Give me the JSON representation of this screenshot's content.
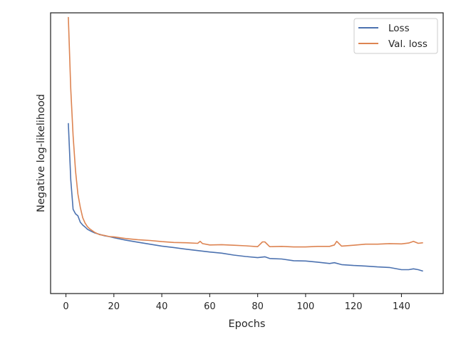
{
  "chart_data": {
    "type": "line",
    "xlabel": "Epochs",
    "ylabel": "Negative log-likelihood",
    "xlim": [
      -6.4,
      157.4
    ],
    "ylim": [
      0.0,
      1.0
    ],
    "x_ticks": [
      0,
      20,
      40,
      60,
      80,
      100,
      120,
      140
    ],
    "y_tick_labels": "none",
    "grid": false,
    "legend": {
      "placement": "top-right"
    },
    "series": [
      {
        "name": "Loss",
        "color": "#4c72b0",
        "x": [
          1,
          2,
          3,
          4,
          5,
          6,
          7,
          8,
          9,
          10,
          12,
          14,
          16,
          18,
          20,
          25,
          30,
          35,
          40,
          45,
          50,
          55,
          60,
          65,
          70,
          75,
          80,
          83,
          85,
          90,
          95,
          100,
          105,
          110,
          112,
          115,
          120,
          125,
          130,
          135,
          140,
          143,
          145,
          147,
          149
        ],
        "y": [
          0.607,
          0.406,
          0.3,
          0.284,
          0.277,
          0.254,
          0.244,
          0.237,
          0.229,
          0.224,
          0.216,
          0.211,
          0.206,
          0.203,
          0.199,
          0.19,
          0.183,
          0.176,
          0.169,
          0.164,
          0.158,
          0.153,
          0.148,
          0.144,
          0.137,
          0.132,
          0.128,
          0.131,
          0.125,
          0.123,
          0.117,
          0.116,
          0.112,
          0.107,
          0.11,
          0.103,
          0.1,
          0.098,
          0.095,
          0.093,
          0.085,
          0.085,
          0.088,
          0.085,
          0.08
        ]
      },
      {
        "name": "Val. loss",
        "color": "#dd8452",
        "x": [
          1,
          2,
          3,
          4,
          5,
          6,
          7,
          8,
          9,
          10,
          12,
          14,
          16,
          18,
          20,
          25,
          30,
          35,
          40,
          45,
          50,
          55,
          56,
          57,
          60,
          65,
          70,
          75,
          80,
          82,
          83,
          85,
          90,
          95,
          100,
          105,
          110,
          112,
          113,
          115,
          120,
          125,
          130,
          135,
          140,
          143,
          145,
          147,
          149
        ],
        "y": [
          0.985,
          0.729,
          0.562,
          0.437,
          0.355,
          0.307,
          0.27,
          0.251,
          0.238,
          0.23,
          0.218,
          0.21,
          0.207,
          0.203,
          0.202,
          0.196,
          0.192,
          0.189,
          0.185,
          0.182,
          0.181,
          0.179,
          0.186,
          0.178,
          0.173,
          0.174,
          0.172,
          0.17,
          0.167,
          0.184,
          0.184,
          0.167,
          0.168,
          0.166,
          0.166,
          0.168,
          0.168,
          0.173,
          0.186,
          0.169,
          0.172,
          0.176,
          0.176,
          0.178,
          0.177,
          0.18,
          0.186,
          0.179,
          0.181
        ]
      }
    ]
  }
}
